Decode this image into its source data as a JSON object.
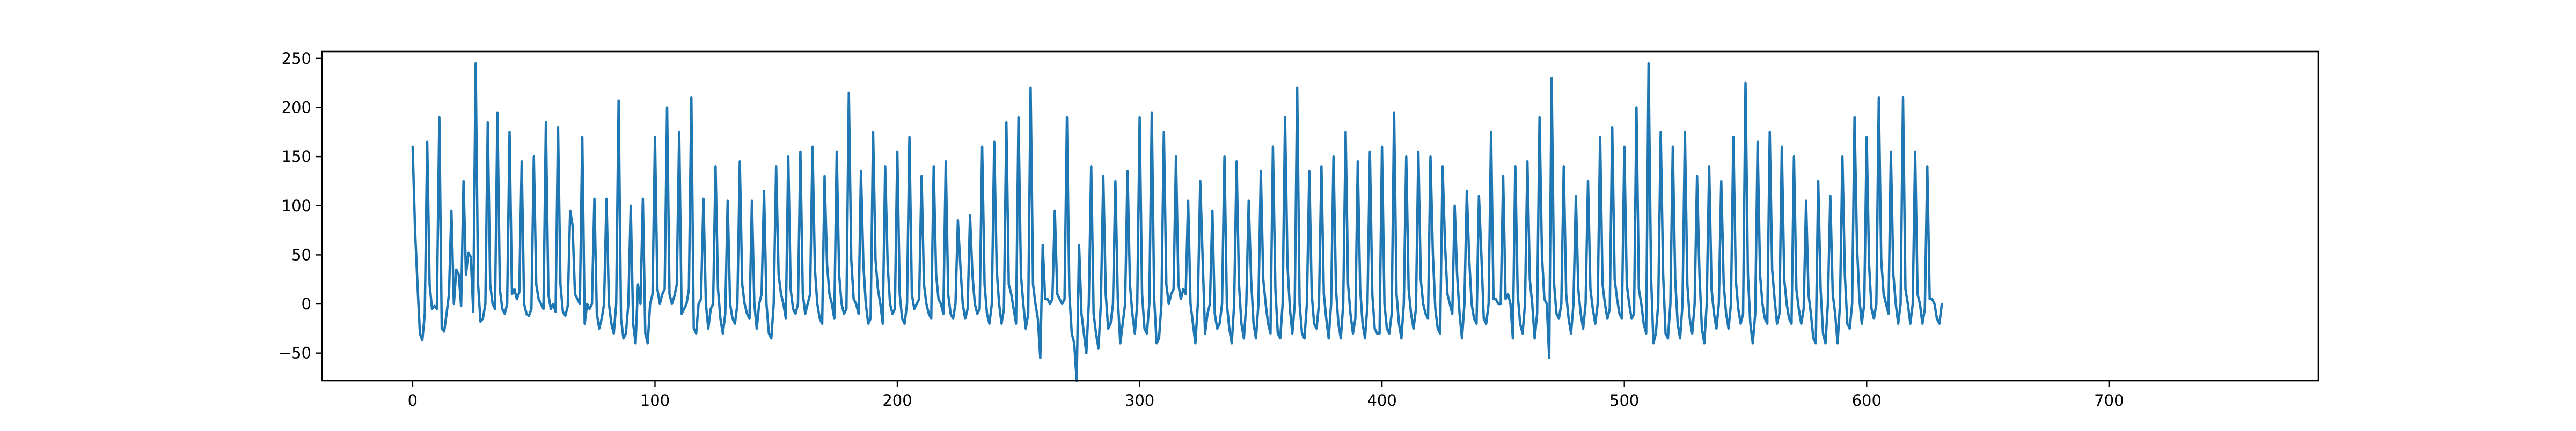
{
  "chart_data": {
    "type": "line",
    "title": "",
    "xlabel": "",
    "ylabel": "",
    "xlim": [
      -37.4,
      786.4
    ],
    "ylim": [
      -78,
      257
    ],
    "x_ticks": [
      0,
      100,
      200,
      300,
      400,
      500,
      600,
      700
    ],
    "y_ticks": [
      -50,
      0,
      50,
      100,
      150,
      200,
      250
    ],
    "x_tick_labels": [
      "0",
      "100",
      "200",
      "300",
      "400",
      "500",
      "600",
      "700"
    ],
    "y_tick_labels": [
      "−50",
      "0",
      "50",
      "100",
      "150",
      "200",
      "250"
    ],
    "grid": false,
    "legend": "none",
    "series": [
      {
        "color": "#1f77b4",
        "x_start": 0,
        "x_step": 1,
        "values": [
          160,
          75,
          20,
          -30,
          -37,
          -10,
          165,
          20,
          -5,
          -2,
          -5,
          190,
          -25,
          -28,
          -10,
          10,
          95,
          0,
          35,
          30,
          -2,
          125,
          30,
          52,
          48,
          -8,
          245,
          20,
          -18,
          -15,
          0,
          185,
          20,
          0,
          -5,
          195,
          15,
          -5,
          -10,
          0,
          175,
          10,
          15,
          5,
          12,
          145,
          0,
          -10,
          -12,
          -5,
          150,
          20,
          5,
          0,
          -5,
          185,
          10,
          -5,
          0,
          -8,
          180,
          20,
          -8,
          -12,
          -2,
          95,
          80,
          10,
          5,
          0,
          170,
          -20,
          0,
          -5,
          0,
          107,
          -10,
          -25,
          -15,
          0,
          107,
          0,
          -20,
          -30,
          0,
          207,
          -15,
          -35,
          -30,
          0,
          100,
          -20,
          -40,
          20,
          0,
          107,
          -30,
          -40,
          0,
          10,
          170,
          15,
          0,
          10,
          15,
          200,
          10,
          0,
          8,
          20,
          175,
          -10,
          -5,
          0,
          15,
          210,
          -25,
          -30,
          0,
          5,
          107,
          0,
          -25,
          -5,
          0,
          140,
          15,
          -15,
          -30,
          -10,
          105,
          0,
          -15,
          -20,
          0,
          145,
          20,
          0,
          -10,
          -15,
          105,
          0,
          -25,
          0,
          10,
          115,
          0,
          -30,
          -35,
          0,
          140,
          30,
          10,
          0,
          -15,
          150,
          15,
          -5,
          -10,
          0,
          155,
          10,
          -10,
          0,
          10,
          160,
          35,
          0,
          -15,
          -20,
          130,
          40,
          10,
          0,
          -15,
          155,
          30,
          0,
          -10,
          -5,
          215,
          45,
          5,
          0,
          -10,
          135,
          40,
          0,
          -20,
          -15,
          175,
          45,
          15,
          0,
          -20,
          140,
          40,
          0,
          -10,
          -5,
          155,
          10,
          -15,
          -20,
          0,
          170,
          10,
          -5,
          0,
          5,
          130,
          20,
          0,
          -10,
          -15,
          140,
          30,
          5,
          0,
          -10,
          145,
          10,
          -10,
          -15,
          0,
          85,
          40,
          0,
          -15,
          -5,
          90,
          30,
          0,
          -10,
          -5,
          160,
          20,
          -10,
          -20,
          0,
          165,
          35,
          0,
          -20,
          -5,
          185,
          20,
          10,
          -5,
          -20,
          190,
          30,
          0,
          -25,
          -10,
          220,
          20,
          0,
          -15,
          -55,
          60,
          5,
          5,
          0,
          5,
          95,
          10,
          5,
          0,
          5,
          190,
          10,
          -30,
          -40,
          -78,
          60,
          -10,
          -30,
          -50,
          0,
          140,
          -10,
          -30,
          -45,
          0,
          130,
          10,
          -25,
          -20,
          0,
          125,
          5,
          -40,
          -20,
          0,
          135,
          20,
          -10,
          -30,
          0,
          190,
          10,
          -25,
          -30,
          0,
          195,
          5,
          -40,
          -35,
          0,
          175,
          20,
          0,
          10,
          15,
          150,
          20,
          5,
          15,
          10,
          105,
          0,
          -20,
          -40,
          0,
          125,
          45,
          -30,
          -10,
          0,
          95,
          -10,
          -25,
          -20,
          0,
          150,
          0,
          -25,
          -40,
          0,
          145,
          20,
          -20,
          -35,
          0,
          105,
          25,
          -20,
          -35,
          0,
          135,
          25,
          0,
          -20,
          -30,
          160,
          15,
          -30,
          -35,
          0,
          190,
          40,
          -5,
          -30,
          0,
          220,
          0,
          -30,
          -35,
          0,
          135,
          10,
          -20,
          -25,
          0,
          140,
          10,
          -15,
          -35,
          0,
          150,
          15,
          -20,
          -35,
          0,
          175,
          20,
          -10,
          -30,
          -15,
          145,
          15,
          -20,
          -35,
          0,
          155,
          10,
          -25,
          -30,
          -30,
          160,
          0,
          -25,
          -30,
          -10,
          195,
          10,
          -20,
          -35,
          0,
          150,
          15,
          -10,
          -25,
          -5,
          155,
          25,
          0,
          -10,
          -15,
          150,
          50,
          -5,
          -25,
          -30,
          140,
          60,
          10,
          0,
          -10,
          100,
          30,
          -10,
          -35,
          0,
          115,
          45,
          0,
          -15,
          -20,
          110,
          50,
          -15,
          -20,
          0,
          175,
          5,
          5,
          0,
          0,
          130,
          5,
          10,
          0,
          -35,
          140,
          10,
          -20,
          -30,
          0,
          145,
          25,
          0,
          -35,
          -10,
          190,
          50,
          5,
          0,
          -55,
          230,
          20,
          -10,
          -15,
          0,
          140,
          10,
          -15,
          -30,
          0,
          110,
          15,
          -10,
          -25,
          0,
          125,
          15,
          -5,
          -20,
          0,
          170,
          20,
          0,
          -15,
          -5,
          180,
          25,
          5,
          -10,
          -15,
          160,
          20,
          0,
          -15,
          -10,
          200,
          15,
          0,
          -20,
          -30,
          245,
          30,
          -40,
          -30,
          0,
          175,
          30,
          -30,
          -35,
          0,
          160,
          25,
          -20,
          -35,
          0,
          175,
          20,
          -15,
          -30,
          0,
          130,
          30,
          -25,
          -40,
          0,
          140,
          15,
          -10,
          -25,
          0,
          125,
          20,
          -10,
          -25,
          0,
          170,
          25,
          -5,
          -20,
          -10,
          225,
          30,
          -20,
          -40,
          -10,
          165,
          30,
          0,
          -15,
          -20,
          175,
          35,
          5,
          -20,
          -10,
          160,
          25,
          0,
          -15,
          -20,
          150,
          15,
          -5,
          -20,
          -5,
          105,
          10,
          -10,
          -35,
          -40,
          125,
          15,
          -30,
          -40,
          0,
          110,
          10,
          -10,
          -40,
          0,
          150,
          30,
          -20,
          -25,
          0,
          190,
          60,
          5,
          -20,
          0,
          170,
          40,
          -5,
          -15,
          0,
          210,
          45,
          10,
          0,
          -10,
          155,
          30,
          0,
          -20,
          0,
          210,
          15,
          0,
          -20,
          0,
          155,
          10,
          0,
          -20,
          -5,
          140,
          5,
          5,
          0,
          -15,
          -20,
          0
        ]
      }
    ]
  }
}
